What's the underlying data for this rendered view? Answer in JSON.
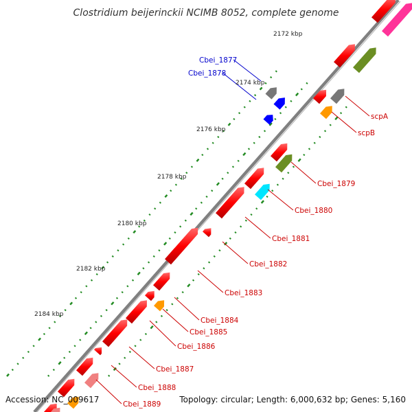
{
  "title": "Clostridium beijerinckii NCIMB 8052, complete genome",
  "accession": "Accession: NC_009617",
  "topology": "Topology: circular; Length: 6,000,632 bp; Genes: 5,160",
  "ticks": [
    "2172 kbp",
    "2174 kbp",
    "2176 kbp",
    "2178 kbp",
    "2180 kbp",
    "2182 kbp",
    "2184 kbp"
  ],
  "labels": {
    "forward": [
      "Cbei_1877",
      "Cbei_1878"
    ],
    "reverse": [
      "scpA",
      "scpB",
      "Cbei_1879",
      "Cbei_1880",
      "Cbei_1881",
      "Cbei_1882",
      "Cbei_1883",
      "Cbei_1884",
      "Cbei_1885",
      "Cbei_1886",
      "Cbei_1887",
      "Cbei_1888",
      "Cbei_1889"
    ]
  },
  "colors": {
    "cds": "#ff0000",
    "forward_label": "#0000cc",
    "reverse_label": "#cc0000",
    "backbone": "#808080",
    "gc_dots": "#228b22",
    "gray_feature": "#777777",
    "blue_feature": "#0000ff",
    "olive_feature": "#6b8e23",
    "cyan_feature": "#00e5ff",
    "orange_feature": "#ff9900",
    "pink_feature": "#ff3399",
    "salmon_feature": "#f08080"
  }
}
